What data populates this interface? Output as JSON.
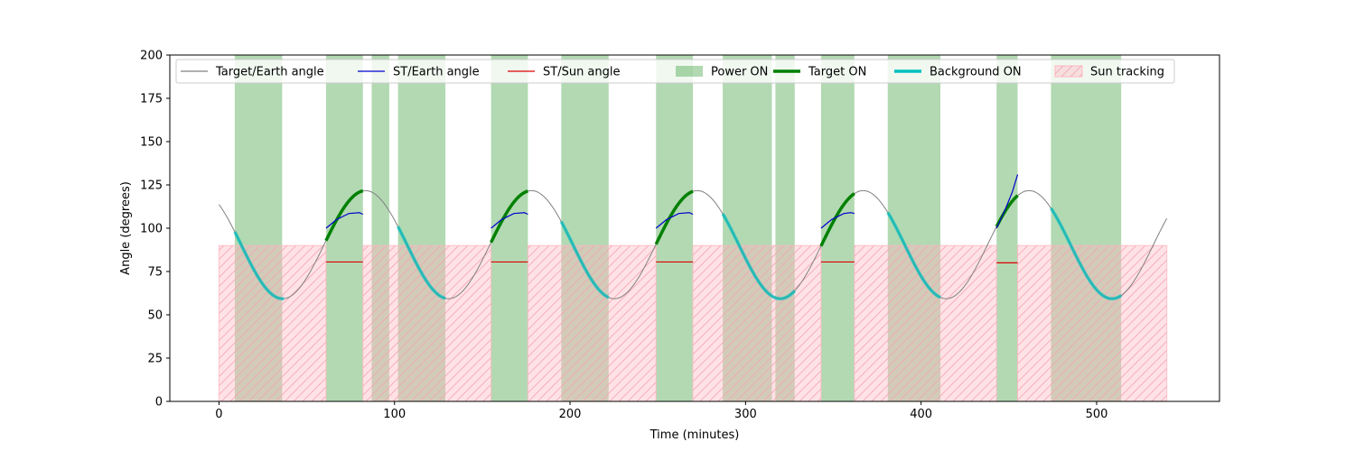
{
  "chart_data": {
    "type": "line",
    "title": "",
    "xlabel": "Time (minutes)",
    "ylabel": "Angle (degrees)",
    "xlim": [
      -28,
      570
    ],
    "ylim": [
      0,
      200
    ],
    "xticks": [
      0,
      100,
      200,
      300,
      400,
      500
    ],
    "yticks": [
      0,
      25,
      50,
      75,
      100,
      125,
      150,
      175,
      200
    ],
    "grid": false,
    "legend_position": "top",
    "legend": [
      {
        "label": "Target/Earth angle",
        "kind": "line",
        "color": "#808080"
      },
      {
        "label": "ST/Earth angle",
        "kind": "line",
        "color": "#0000cc"
      },
      {
        "label": "ST/Sun angle",
        "kind": "line",
        "color": "#dd0000"
      },
      {
        "label": "Power ON",
        "kind": "patch",
        "color": "#008000"
      },
      {
        "label": "Target ON",
        "kind": "thickline",
        "color": "#008000"
      },
      {
        "label": "Background ON",
        "kind": "thickline",
        "color": "#00bfbf"
      },
      {
        "label": "Sun tracking",
        "kind": "hatch",
        "color": "#ffb6c1"
      }
    ],
    "target_earth_model": {
      "center": 90.5,
      "amplitude": 31.2,
      "period_min": 94.5,
      "phase_min": 178
    },
    "target_earth_range": [
      0,
      540
    ],
    "power_on": [
      [
        9,
        36
      ],
      [
        61,
        82
      ],
      [
        87,
        97
      ],
      [
        102,
        129
      ],
      [
        155,
        176
      ],
      [
        195,
        222
      ],
      [
        249,
        270
      ],
      [
        287,
        315
      ],
      [
        317,
        328
      ],
      [
        343,
        362
      ],
      [
        381,
        411
      ],
      [
        443,
        455
      ],
      [
        474,
        514
      ]
    ],
    "sun_tracking": {
      "level": 90,
      "intervals": [
        [
          0,
          61
        ],
        [
          82,
          155
        ],
        [
          176,
          249
        ],
        [
          270,
          343
        ],
        [
          362,
          443
        ],
        [
          455,
          540
        ]
      ]
    },
    "target_on": [
      [
        61,
        82
      ],
      [
        155,
        176
      ],
      [
        249,
        270
      ],
      [
        343,
        362
      ],
      [
        443,
        455
      ]
    ],
    "background_on": [
      [
        9,
        37
      ],
      [
        102,
        129
      ],
      [
        195,
        222
      ],
      [
        287,
        328
      ],
      [
        381,
        411
      ],
      [
        474,
        514
      ]
    ],
    "st_earth": [
      {
        "x": [
          61,
          67,
          74,
          80,
          82
        ],
        "y": [
          100,
          105,
          108.5,
          109,
          108
        ]
      },
      {
        "x": [
          155,
          161,
          168,
          174,
          176
        ],
        "y": [
          100,
          105,
          108.5,
          109,
          108
        ]
      },
      {
        "x": [
          249,
          255,
          262,
          268,
          270
        ],
        "y": [
          100,
          105,
          108.5,
          109,
          108
        ]
      },
      {
        "x": [
          343,
          349,
          356,
          360,
          362
        ],
        "y": [
          100,
          105,
          108.5,
          109,
          108.5
        ]
      },
      {
        "x": [
          443,
          448,
          452,
          455
        ],
        "y": [
          100,
          111,
          121,
          131
        ]
      }
    ],
    "st_sun": [
      {
        "x": [
          61,
          82
        ],
        "y": [
          80.5,
          80.5
        ]
      },
      {
        "x": [
          155,
          176
        ],
        "y": [
          80.5,
          80.5
        ]
      },
      {
        "x": [
          249,
          270
        ],
        "y": [
          80.5,
          80.5
        ]
      },
      {
        "x": [
          343,
          362
        ],
        "y": [
          80.5,
          80.5
        ]
      },
      {
        "x": [
          443,
          455
        ],
        "y": [
          80,
          80
        ]
      }
    ]
  }
}
